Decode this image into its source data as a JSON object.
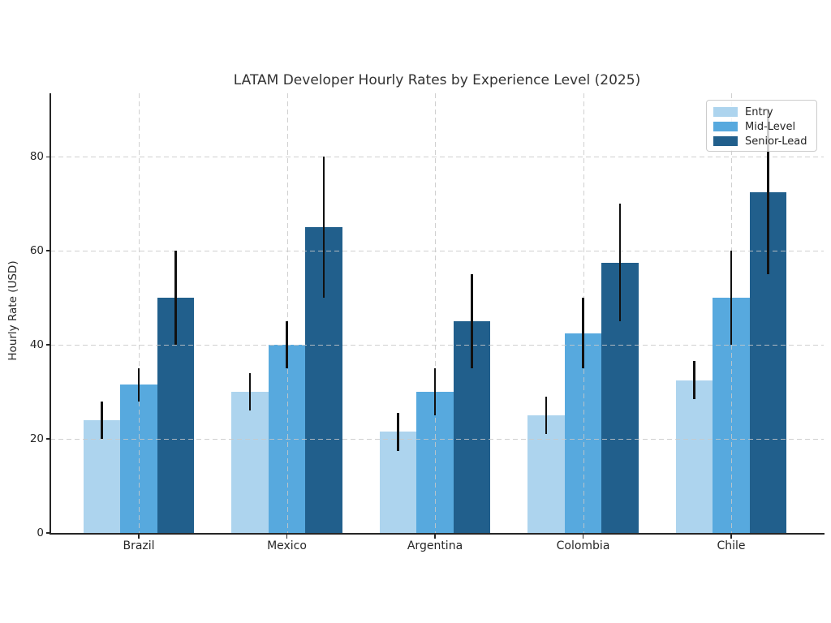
{
  "title": "LATAM Developer Hourly Rates by Experience Level (2025)",
  "chart_data": {
    "type": "bar",
    "title": "LATAM Developer Hourly Rates by Experience Level (2025)",
    "xlabel": "",
    "ylabel": "Hourly Rate (USD)",
    "categories": [
      "Brazil",
      "Mexico",
      "Argentina",
      "Colombia",
      "Chile"
    ],
    "series": [
      {
        "name": "Entry",
        "color": "#ADD4EE",
        "values": [
          24,
          30,
          21.5,
          25,
          32.5
        ],
        "errors": [
          4,
          4,
          4,
          4,
          4
        ]
      },
      {
        "name": "Mid-Level",
        "color": "#57A9DE",
        "values": [
          31.5,
          40,
          30,
          42.5,
          50
        ],
        "errors": [
          3.5,
          5,
          5,
          7.5,
          10
        ]
      },
      {
        "name": "Senior-Lead",
        "color": "#215F8C",
        "values": [
          50,
          65,
          45,
          57.5,
          72.5
        ],
        "errors": [
          10,
          15,
          10,
          12.5,
          17.5
        ]
      }
    ],
    "yticks": [
      0,
      20,
      40,
      60,
      80
    ],
    "ylim": [
      0,
      93.5
    ],
    "grid": "both-dashed-over-bars",
    "error_bar_color": "#111111",
    "legend_position": "upper right",
    "background_color": "#ffffff"
  }
}
